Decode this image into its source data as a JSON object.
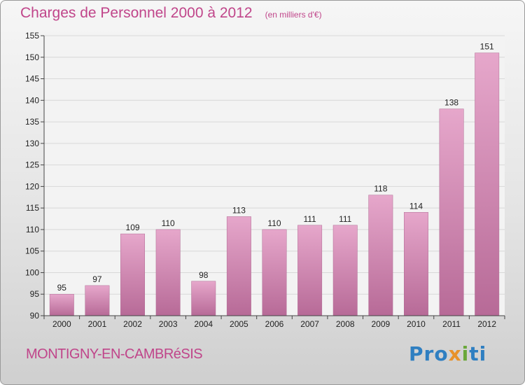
{
  "chart_data": {
    "type": "bar",
    "title": "Charges de Personnel 2000 à 2012",
    "subtitle": "(en milliers d'€)",
    "categories": [
      "2000",
      "2001",
      "2002",
      "2003",
      "2004",
      "2005",
      "2006",
      "2007",
      "2008",
      "2009",
      "2010",
      "2011",
      "2012"
    ],
    "values": [
      95,
      97,
      109,
      110,
      98,
      113,
      110,
      111,
      111,
      118,
      114,
      138,
      151
    ],
    "ylim": [
      90,
      155
    ],
    "yticks": [
      90,
      95,
      100,
      105,
      110,
      115,
      120,
      125,
      130,
      135,
      140,
      145,
      150,
      155
    ],
    "grid": true,
    "bar_color": "#d98bb8",
    "xlabel": "",
    "ylabel": ""
  },
  "footer": {
    "location": "MONTIGNY-EN-CAMBRéSIS",
    "logo_part1": "Pro",
    "logo_part2": "x",
    "logo_part3": "i",
    "logo_part4": "ti"
  }
}
